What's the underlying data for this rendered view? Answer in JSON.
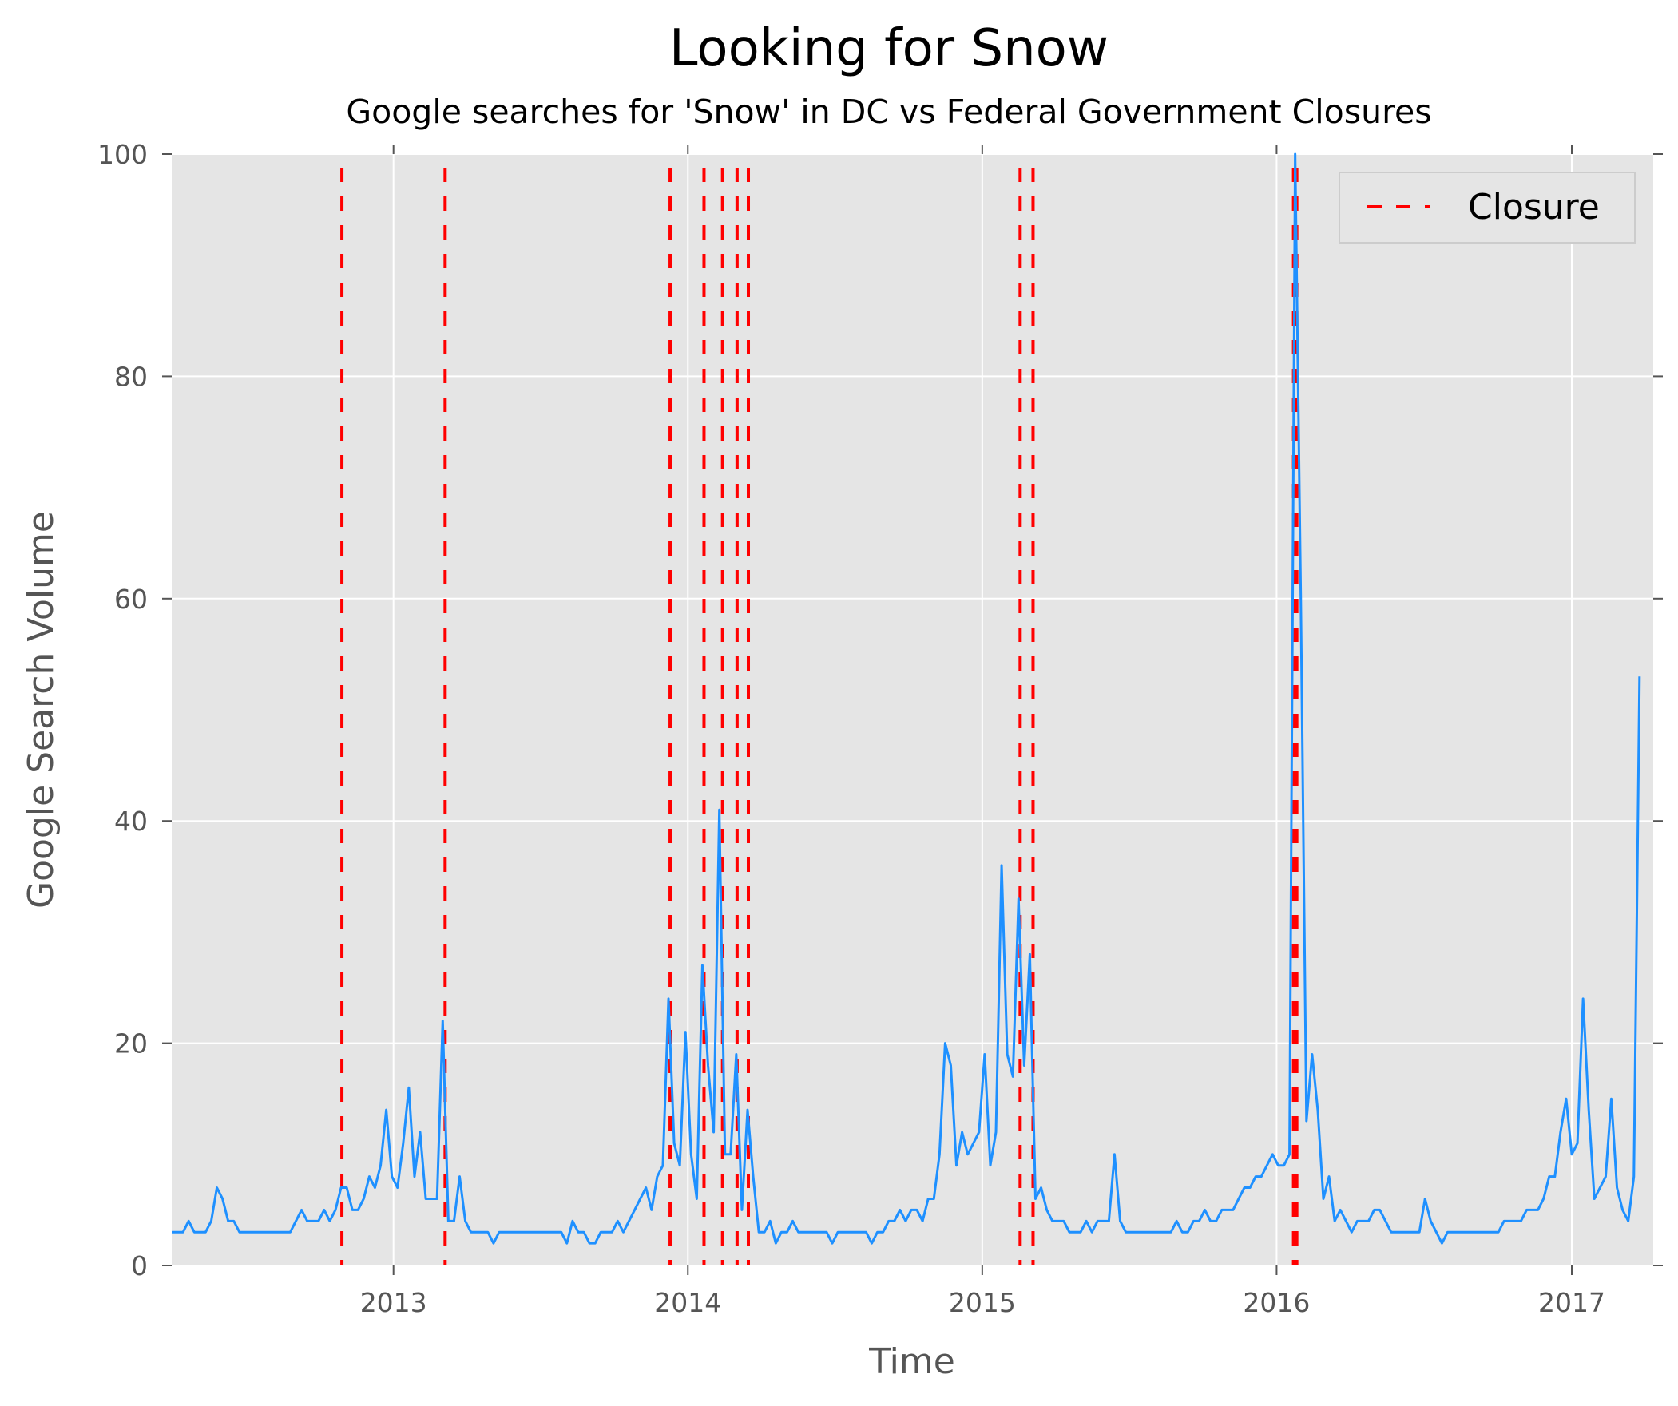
{
  "chart_data": {
    "type": "line",
    "title": "Looking for Snow",
    "subtitle": "Google searches for 'Snow' in DC vs Federal Government Closures",
    "xlabel": "Time",
    "ylabel": "Google Search Volume",
    "xlim": [
      "2012-04-01",
      "2017-04-12"
    ],
    "ylim": [
      0,
      100
    ],
    "x_ticks": [
      {
        "date": "2013-01-01",
        "label": "2013"
      },
      {
        "date": "2014-01-01",
        "label": "2014"
      },
      {
        "date": "2015-01-01",
        "label": "2015"
      },
      {
        "date": "2016-01-01",
        "label": "2016"
      },
      {
        "date": "2017-01-01",
        "label": "2017"
      }
    ],
    "y_ticks": [
      0,
      20,
      40,
      60,
      80,
      100
    ],
    "grid": true,
    "legend": {
      "position": "top-right",
      "entries": [
        "Closure"
      ]
    },
    "colors": {
      "line": "#1e90ff",
      "closure": "#ff0000",
      "plot_bg": "#e5e5e5",
      "grid": "#ffffff",
      "text": "#555555"
    },
    "series": [
      {
        "points": [
          [
            "2012-04-01",
            3
          ],
          [
            "2012-04-08",
            3
          ],
          [
            "2012-04-15",
            3
          ],
          [
            "2012-04-22",
            4
          ],
          [
            "2012-04-29",
            3
          ],
          [
            "2012-05-06",
            3
          ],
          [
            "2012-05-13",
            3
          ],
          [
            "2012-05-20",
            4
          ],
          [
            "2012-05-27",
            7
          ],
          [
            "2012-06-03",
            6
          ],
          [
            "2012-06-10",
            4
          ],
          [
            "2012-06-17",
            4
          ],
          [
            "2012-06-24",
            3
          ],
          [
            "2012-07-01",
            3
          ],
          [
            "2012-07-08",
            3
          ],
          [
            "2012-07-15",
            3
          ],
          [
            "2012-07-22",
            3
          ],
          [
            "2012-07-29",
            3
          ],
          [
            "2012-08-05",
            3
          ],
          [
            "2012-08-12",
            3
          ],
          [
            "2012-08-19",
            3
          ],
          [
            "2012-08-26",
            3
          ],
          [
            "2012-09-02",
            4
          ],
          [
            "2012-09-09",
            5
          ],
          [
            "2012-09-16",
            4
          ],
          [
            "2012-09-23",
            4
          ],
          [
            "2012-09-30",
            4
          ],
          [
            "2012-10-07",
            5
          ],
          [
            "2012-10-14",
            4
          ],
          [
            "2012-10-21",
            5
          ],
          [
            "2012-10-28",
            7
          ],
          [
            "2012-11-04",
            7
          ],
          [
            "2012-11-11",
            5
          ],
          [
            "2012-11-18",
            5
          ],
          [
            "2012-11-25",
            6
          ],
          [
            "2012-12-02",
            8
          ],
          [
            "2012-12-09",
            7
          ],
          [
            "2012-12-16",
            9
          ],
          [
            "2012-12-23",
            14
          ],
          [
            "2012-12-30",
            8
          ],
          [
            "2013-01-06",
            7
          ],
          [
            "2013-01-13",
            11
          ],
          [
            "2013-01-20",
            16
          ],
          [
            "2013-01-27",
            8
          ],
          [
            "2013-02-03",
            12
          ],
          [
            "2013-02-10",
            6
          ],
          [
            "2013-02-17",
            6
          ],
          [
            "2013-02-24",
            6
          ],
          [
            "2013-03-03",
            22
          ],
          [
            "2013-03-10",
            4
          ],
          [
            "2013-03-17",
            4
          ],
          [
            "2013-03-24",
            8
          ],
          [
            "2013-03-31",
            4
          ],
          [
            "2013-04-07",
            3
          ],
          [
            "2013-04-14",
            3
          ],
          [
            "2013-04-21",
            3
          ],
          [
            "2013-04-28",
            3
          ],
          [
            "2013-05-05",
            2
          ],
          [
            "2013-05-12",
            3
          ],
          [
            "2013-05-19",
            3
          ],
          [
            "2013-05-26",
            3
          ],
          [
            "2013-06-02",
            3
          ],
          [
            "2013-06-09",
            3
          ],
          [
            "2013-06-16",
            3
          ],
          [
            "2013-06-23",
            3
          ],
          [
            "2013-06-30",
            3
          ],
          [
            "2013-07-07",
            3
          ],
          [
            "2013-07-14",
            3
          ],
          [
            "2013-07-21",
            3
          ],
          [
            "2013-07-28",
            3
          ],
          [
            "2013-08-04",
            2
          ],
          [
            "2013-08-11",
            4
          ],
          [
            "2013-08-18",
            3
          ],
          [
            "2013-08-25",
            3
          ],
          [
            "2013-09-01",
            2
          ],
          [
            "2013-09-08",
            2
          ],
          [
            "2013-09-15",
            3
          ],
          [
            "2013-09-22",
            3
          ],
          [
            "2013-09-29",
            3
          ],
          [
            "2013-10-06",
            4
          ],
          [
            "2013-10-13",
            3
          ],
          [
            "2013-10-20",
            4
          ],
          [
            "2013-10-27",
            5
          ],
          [
            "2013-11-03",
            6
          ],
          [
            "2013-11-10",
            7
          ],
          [
            "2013-11-17",
            5
          ],
          [
            "2013-11-24",
            8
          ],
          [
            "2013-12-01",
            9
          ],
          [
            "2013-12-08",
            24
          ],
          [
            "2013-12-15",
            11
          ],
          [
            "2013-12-22",
            9
          ],
          [
            "2013-12-29",
            21
          ],
          [
            "2014-01-05",
            10
          ],
          [
            "2014-01-12",
            6
          ],
          [
            "2014-01-19",
            27
          ],
          [
            "2014-01-26",
            18
          ],
          [
            "2014-02-02",
            12
          ],
          [
            "2014-02-09",
            41
          ],
          [
            "2014-02-16",
            10
          ],
          [
            "2014-02-23",
            10
          ],
          [
            "2014-03-02",
            19
          ],
          [
            "2014-03-09",
            5
          ],
          [
            "2014-03-16",
            14
          ],
          [
            "2014-03-23",
            8
          ],
          [
            "2014-03-30",
            3
          ],
          [
            "2014-04-06",
            3
          ],
          [
            "2014-04-13",
            4
          ],
          [
            "2014-04-20",
            2
          ],
          [
            "2014-04-27",
            3
          ],
          [
            "2014-05-04",
            3
          ],
          [
            "2014-05-11",
            4
          ],
          [
            "2014-05-18",
            3
          ],
          [
            "2014-05-25",
            3
          ],
          [
            "2014-06-01",
            3
          ],
          [
            "2014-06-08",
            3
          ],
          [
            "2014-06-15",
            3
          ],
          [
            "2014-06-22",
            3
          ],
          [
            "2014-06-29",
            2
          ],
          [
            "2014-07-06",
            3
          ],
          [
            "2014-07-13",
            3
          ],
          [
            "2014-07-20",
            3
          ],
          [
            "2014-07-27",
            3
          ],
          [
            "2014-08-03",
            3
          ],
          [
            "2014-08-10",
            3
          ],
          [
            "2014-08-17",
            2
          ],
          [
            "2014-08-24",
            3
          ],
          [
            "2014-08-31",
            3
          ],
          [
            "2014-09-07",
            4
          ],
          [
            "2014-09-14",
            4
          ],
          [
            "2014-09-21",
            5
          ],
          [
            "2014-09-28",
            4
          ],
          [
            "2014-10-05",
            5
          ],
          [
            "2014-10-12",
            5
          ],
          [
            "2014-10-19",
            4
          ],
          [
            "2014-10-26",
            6
          ],
          [
            "2014-11-02",
            6
          ],
          [
            "2014-11-09",
            10
          ],
          [
            "2014-11-16",
            20
          ],
          [
            "2014-11-23",
            18
          ],
          [
            "2014-11-30",
            9
          ],
          [
            "2014-12-07",
            12
          ],
          [
            "2014-12-14",
            10
          ],
          [
            "2014-12-21",
            11
          ],
          [
            "2014-12-28",
            12
          ],
          [
            "2015-01-04",
            19
          ],
          [
            "2015-01-11",
            9
          ],
          [
            "2015-01-18",
            12
          ],
          [
            "2015-01-25",
            36
          ],
          [
            "2015-02-01",
            19
          ],
          [
            "2015-02-08",
            17
          ],
          [
            "2015-02-15",
            33
          ],
          [
            "2015-02-22",
            18
          ],
          [
            "2015-03-01",
            28
          ],
          [
            "2015-03-08",
            6
          ],
          [
            "2015-03-15",
            7
          ],
          [
            "2015-03-22",
            5
          ],
          [
            "2015-03-29",
            4
          ],
          [
            "2015-04-05",
            4
          ],
          [
            "2015-04-12",
            4
          ],
          [
            "2015-04-19",
            3
          ],
          [
            "2015-04-26",
            3
          ],
          [
            "2015-05-03",
            3
          ],
          [
            "2015-05-10",
            4
          ],
          [
            "2015-05-17",
            3
          ],
          [
            "2015-05-24",
            4
          ],
          [
            "2015-05-31",
            4
          ],
          [
            "2015-06-07",
            4
          ],
          [
            "2015-06-14",
            10
          ],
          [
            "2015-06-21",
            4
          ],
          [
            "2015-06-28",
            3
          ],
          [
            "2015-07-05",
            3
          ],
          [
            "2015-07-12",
            3
          ],
          [
            "2015-07-19",
            3
          ],
          [
            "2015-07-26",
            3
          ],
          [
            "2015-08-02",
            3
          ],
          [
            "2015-08-09",
            3
          ],
          [
            "2015-08-16",
            3
          ],
          [
            "2015-08-23",
            3
          ],
          [
            "2015-08-30",
            4
          ],
          [
            "2015-09-06",
            3
          ],
          [
            "2015-09-13",
            3
          ],
          [
            "2015-09-20",
            4
          ],
          [
            "2015-09-27",
            4
          ],
          [
            "2015-10-04",
            5
          ],
          [
            "2015-10-11",
            4
          ],
          [
            "2015-10-18",
            4
          ],
          [
            "2015-10-25",
            5
          ],
          [
            "2015-11-01",
            5
          ],
          [
            "2015-11-08",
            5
          ],
          [
            "2015-11-15",
            6
          ],
          [
            "2015-11-22",
            7
          ],
          [
            "2015-11-29",
            7
          ],
          [
            "2015-12-06",
            8
          ],
          [
            "2015-12-13",
            8
          ],
          [
            "2015-12-20",
            9
          ],
          [
            "2015-12-27",
            10
          ],
          [
            "2016-01-03",
            9
          ],
          [
            "2016-01-10",
            9
          ],
          [
            "2016-01-17",
            10
          ],
          [
            "2016-01-24",
            100
          ],
          [
            "2016-01-31",
            60
          ],
          [
            "2016-02-07",
            13
          ],
          [
            "2016-02-14",
            19
          ],
          [
            "2016-02-21",
            14
          ],
          [
            "2016-02-28",
            6
          ],
          [
            "2016-03-06",
            8
          ],
          [
            "2016-03-13",
            4
          ],
          [
            "2016-03-20",
            5
          ],
          [
            "2016-03-27",
            4
          ],
          [
            "2016-04-03",
            3
          ],
          [
            "2016-04-10",
            4
          ],
          [
            "2016-04-17",
            4
          ],
          [
            "2016-04-24",
            4
          ],
          [
            "2016-05-01",
            5
          ],
          [
            "2016-05-08",
            5
          ],
          [
            "2016-05-15",
            4
          ],
          [
            "2016-05-22",
            3
          ],
          [
            "2016-05-29",
            3
          ],
          [
            "2016-06-05",
            3
          ],
          [
            "2016-06-12",
            3
          ],
          [
            "2016-06-19",
            3
          ],
          [
            "2016-06-26",
            3
          ],
          [
            "2016-07-03",
            6
          ],
          [
            "2016-07-10",
            4
          ],
          [
            "2016-07-17",
            3
          ],
          [
            "2016-07-24",
            2
          ],
          [
            "2016-07-31",
            3
          ],
          [
            "2016-08-07",
            3
          ],
          [
            "2016-08-14",
            3
          ],
          [
            "2016-08-21",
            3
          ],
          [
            "2016-08-28",
            3
          ],
          [
            "2016-09-04",
            3
          ],
          [
            "2016-09-11",
            3
          ],
          [
            "2016-09-18",
            3
          ],
          [
            "2016-09-25",
            3
          ],
          [
            "2016-10-02",
            3
          ],
          [
            "2016-10-09",
            4
          ],
          [
            "2016-10-16",
            4
          ],
          [
            "2016-10-23",
            4
          ],
          [
            "2016-10-30",
            4
          ],
          [
            "2016-11-06",
            5
          ],
          [
            "2016-11-13",
            5
          ],
          [
            "2016-11-20",
            5
          ],
          [
            "2016-11-27",
            6
          ],
          [
            "2016-12-04",
            8
          ],
          [
            "2016-12-11",
            8
          ],
          [
            "2016-12-18",
            12
          ],
          [
            "2016-12-25",
            15
          ],
          [
            "2017-01-01",
            10
          ],
          [
            "2017-01-08",
            11
          ],
          [
            "2017-01-15",
            24
          ],
          [
            "2017-01-22",
            14
          ],
          [
            "2017-01-29",
            6
          ],
          [
            "2017-02-05",
            7
          ],
          [
            "2017-02-12",
            8
          ],
          [
            "2017-02-19",
            15
          ],
          [
            "2017-02-26",
            7
          ],
          [
            "2017-03-05",
            5
          ],
          [
            "2017-03-12",
            4
          ],
          [
            "2017-03-19",
            8
          ],
          [
            "2017-03-26",
            53
          ]
        ]
      }
    ],
    "closures": [
      {
        "name": "Closure",
        "dates": [
          "2012-10-29",
          "2013-03-06",
          "2013-12-10",
          "2014-01-21",
          "2014-02-13",
          "2014-03-03",
          "2014-03-17",
          "2015-02-17",
          "2015-03-05",
          "2016-01-22",
          "2016-01-25",
          "2016-01-26"
        ]
      }
    ]
  }
}
